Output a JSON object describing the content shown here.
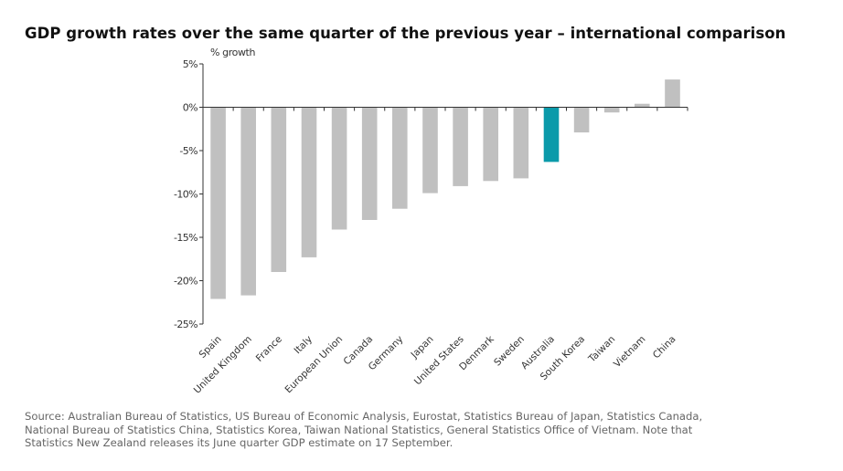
{
  "chart_data": {
    "type": "bar",
    "title": "GDP growth rates over the same quarter of the previous year – international comparison",
    "xlabel": "",
    "ylabel": "% growth",
    "ylim": [
      -25,
      5
    ],
    "yticks": [
      5,
      0,
      -5,
      -10,
      -15,
      -20,
      -25
    ],
    "ytick_labels": [
      "5%",
      "0%",
      "-5%",
      "-10%",
      "-15%",
      "-20%",
      "-25%"
    ],
    "grid": false,
    "legend": "none",
    "categories": [
      "Spain",
      "United Kingdom",
      "France",
      "Italy",
      "European Union",
      "Canada",
      "Germany",
      "Japan",
      "United States",
      "Denmark",
      "Sweden",
      "Australia",
      "South Korea",
      "Taiwan",
      "Vietnam",
      "China"
    ],
    "values": [
      -22.1,
      -21.7,
      -19.0,
      -17.3,
      -14.1,
      -13.0,
      -11.7,
      -9.9,
      -9.1,
      -8.5,
      -8.2,
      -6.3,
      -2.9,
      -0.6,
      0.4,
      3.2
    ],
    "highlight_category": "Australia",
    "colors": {
      "default": "#c0c0c0",
      "highlight": "#0a9aaa",
      "axis": "#333333"
    }
  },
  "source_lines": [
    "Source: Australian Bureau of Statistics, US Bureau of Economic Analysis, Eurostat, Statistics Bureau of Japan, Statistics Canada,",
    "National Bureau of Statistics China, Statistics Korea, Taiwan National Statistics, General Statistics Office of Vietnam.  Note that",
    "Statistics New Zealand releases its June quarter GDP estimate on 17 September."
  ]
}
